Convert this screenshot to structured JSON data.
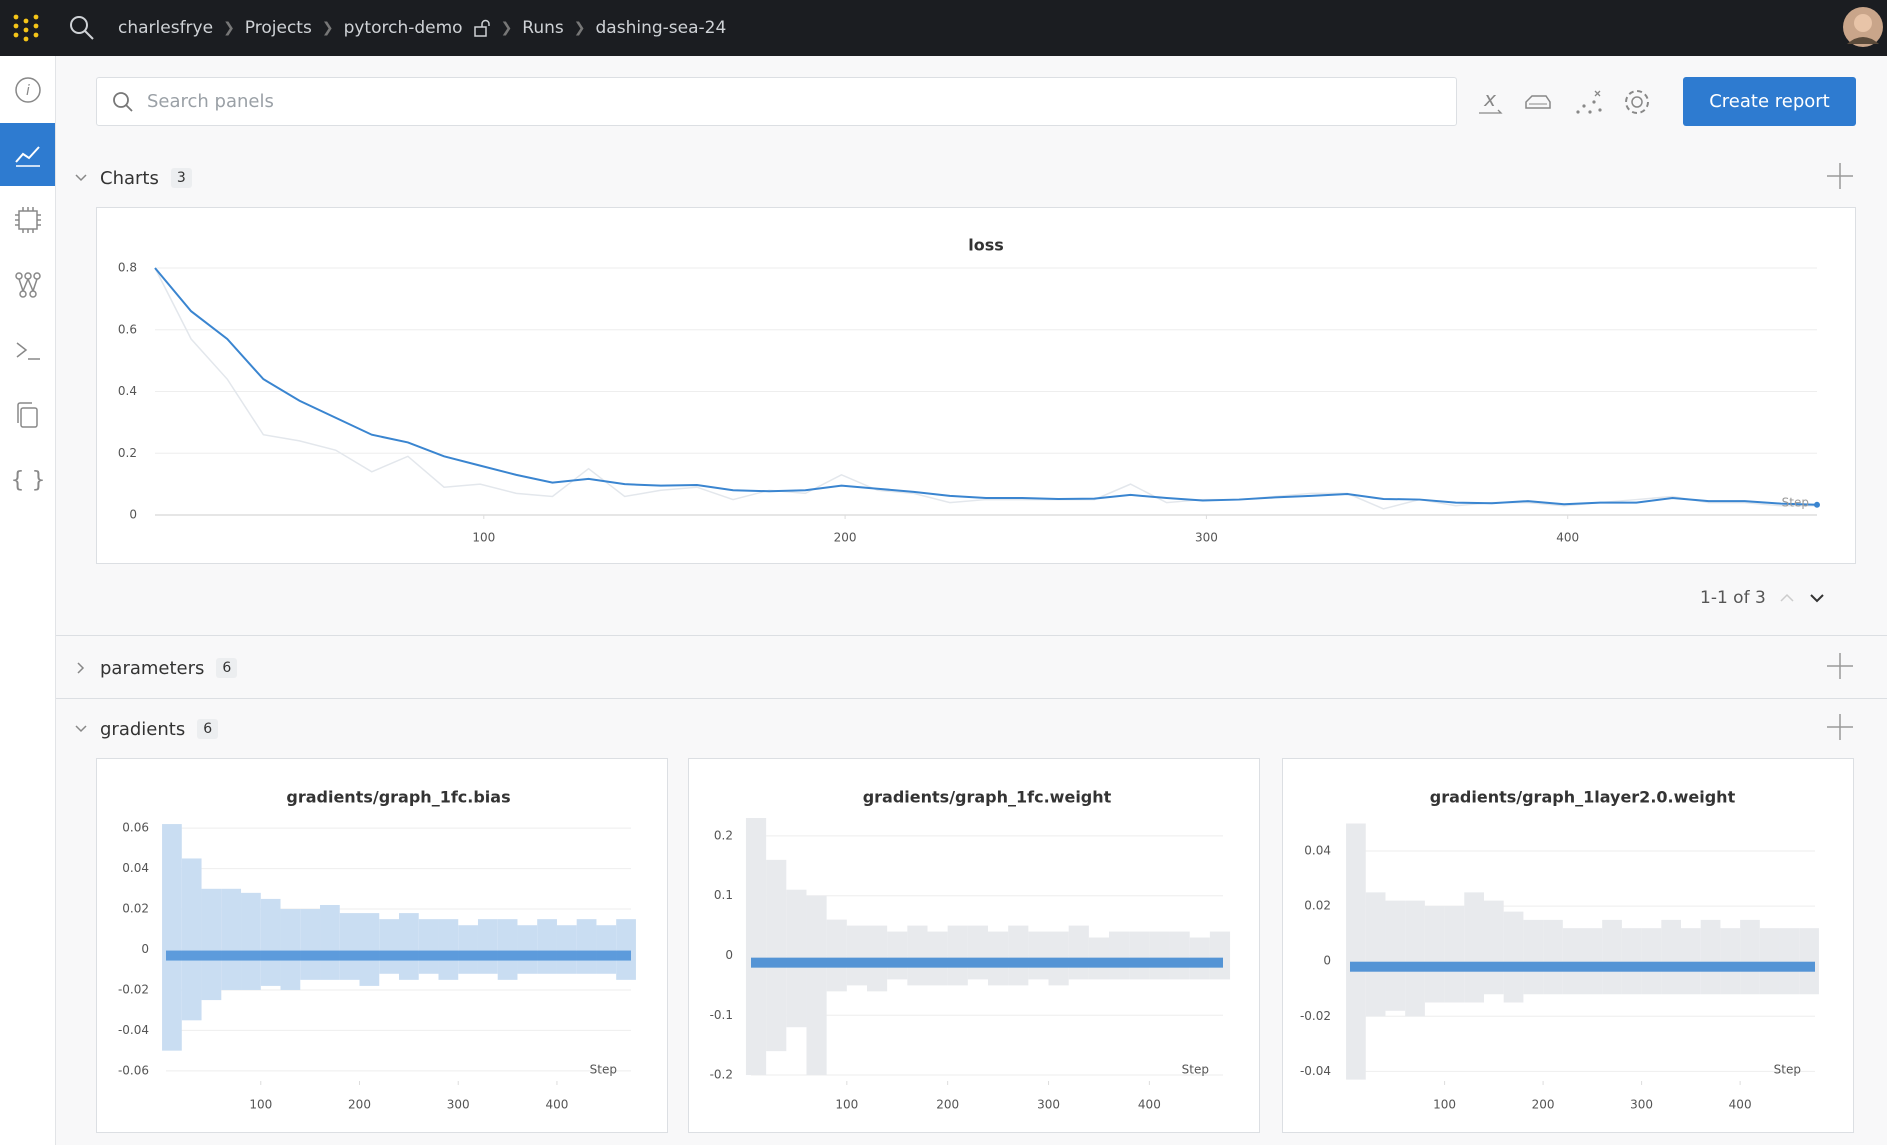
{
  "header": {
    "breadcrumbs": [
      "charlesfrye",
      "Projects",
      "pytorch-demo",
      "Runs",
      "dashing-sea-24"
    ]
  },
  "toolbar": {
    "search_placeholder": "Search panels",
    "button": "Create report"
  },
  "sections": [
    {
      "name": "Charts",
      "count": 3
    },
    {
      "name": "parameters",
      "count": 6
    },
    {
      "name": "gradients",
      "count": 6
    }
  ],
  "pagination": "1-1 of 3",
  "chart_data": [
    {
      "type": "line",
      "title": "loss",
      "xlabel": "Step",
      "x": [
        9,
        19,
        29,
        39,
        49,
        59,
        69,
        79,
        89,
        99,
        109,
        119,
        129,
        139,
        149,
        159,
        169,
        179,
        189,
        199,
        209,
        219,
        229,
        239,
        249,
        259,
        269,
        279,
        289,
        299,
        309,
        319,
        329,
        339,
        349,
        359,
        369,
        379,
        389,
        399,
        409,
        419,
        429,
        439,
        449,
        459,
        469
      ],
      "series": [
        {
          "color": "#e3e7ec",
          "values": [
            0.8,
            0.57,
            0.44,
            0.26,
            0.24,
            0.21,
            0.14,
            0.19,
            0.09,
            0.1,
            0.07,
            0.06,
            0.15,
            0.06,
            0.08,
            0.09,
            0.05,
            0.08,
            0.07,
            0.13,
            0.08,
            0.07,
            0.04,
            0.05,
            0.05,
            0.05,
            0.05,
            0.1,
            0.04,
            0.05,
            0.05,
            0.06,
            0.07,
            0.07,
            0.02,
            0.05,
            0.03,
            0.04,
            0.04,
            0.03,
            0.04,
            0.05,
            0.06,
            0.04,
            0.04,
            0.03,
            0.03
          ]
        },
        {
          "color": "#3a85d0",
          "values": [
            0.8,
            0.66,
            0.57,
            0.44,
            0.37,
            0.315,
            0.26,
            0.235,
            0.19,
            0.16,
            0.13,
            0.105,
            0.117,
            0.1,
            0.095,
            0.097,
            0.08,
            0.077,
            0.08,
            0.095,
            0.085,
            0.075,
            0.062,
            0.055,
            0.055,
            0.052,
            0.053,
            0.065,
            0.055,
            0.047,
            0.05,
            0.057,
            0.062,
            0.068,
            0.052,
            0.05,
            0.04,
            0.038,
            0.045,
            0.035,
            0.04,
            0.04,
            0.055,
            0.045,
            0.045,
            0.037,
            0.033
          ]
        }
      ],
      "xlim": [
        9,
        469
      ],
      "xticks": [
        100,
        200,
        300,
        400
      ],
      "ylim": [
        0,
        0.8
      ],
      "yticks": [
        0,
        0.2,
        0.4,
        0.6,
        0.8
      ],
      "grid": true
    },
    {
      "type": "heatmap",
      "title": "gradients/graph_1fc.bias",
      "xlabel": "Step",
      "color": "#c9ddf2",
      "center_color": "#4a8fd8",
      "x": [
        10,
        30,
        50,
        70,
        90,
        110,
        130,
        150,
        170,
        190,
        210,
        230,
        250,
        270,
        290,
        310,
        330,
        350,
        370,
        390,
        410,
        430,
        450,
        470
      ],
      "high": [
        0.062,
        0.045,
        0.03,
        0.03,
        0.028,
        0.025,
        0.02,
        0.02,
        0.022,
        0.018,
        0.018,
        0.015,
        0.018,
        0.015,
        0.015,
        0.012,
        0.015,
        0.015,
        0.012,
        0.015,
        0.012,
        0.015,
        0.012,
        0.015
      ],
      "low": [
        -0.05,
        -0.035,
        -0.025,
        -0.02,
        -0.02,
        -0.018,
        -0.02,
        -0.015,
        -0.015,
        -0.015,
        -0.018,
        -0.012,
        -0.015,
        -0.012,
        -0.015,
        -0.012,
        -0.012,
        -0.015,
        -0.012,
        -0.012,
        -0.012,
        -0.012,
        -0.012,
        -0.015
      ],
      "center": -0.003,
      "xlim": [
        4,
        475
      ],
      "xticks": [
        100,
        200,
        300,
        400
      ],
      "ylim": [
        -0.065,
        0.065
      ],
      "yticks": [
        -0.06,
        -0.04,
        -0.02,
        0,
        0.02,
        0.04,
        0.06
      ],
      "grid": true
    },
    {
      "type": "heatmap",
      "title": "gradients/graph_1fc.weight",
      "xlabel": "Step",
      "color": "#e8eaed",
      "center_color": "#3a85d0",
      "x": [
        10,
        30,
        50,
        70,
        90,
        110,
        130,
        150,
        170,
        190,
        210,
        230,
        250,
        270,
        290,
        310,
        330,
        350,
        370,
        390,
        410,
        430,
        450,
        470
      ],
      "high": [
        0.23,
        0.16,
        0.11,
        0.1,
        0.06,
        0.05,
        0.05,
        0.04,
        0.05,
        0.04,
        0.05,
        0.05,
        0.04,
        0.05,
        0.04,
        0.04,
        0.05,
        0.03,
        0.04,
        0.04,
        0.04,
        0.04,
        0.03,
        0.04
      ],
      "low": [
        -0.2,
        -0.16,
        -0.12,
        -0.2,
        -0.06,
        -0.05,
        -0.06,
        -0.04,
        -0.05,
        -0.05,
        -0.05,
        -0.04,
        -0.05,
        -0.05,
        -0.04,
        -0.05,
        -0.04,
        -0.04,
        -0.04,
        -0.04,
        -0.04,
        -0.04,
        -0.04,
        -0.04
      ],
      "center": -0.012,
      "xlim": [
        5,
        473
      ],
      "xticks": [
        100,
        200,
        300,
        400
      ],
      "ylim": [
        -0.21,
        0.23
      ],
      "yticks": [
        -0.2,
        -0.1,
        0,
        0.1,
        0.2
      ],
      "grid": true
    },
    {
      "type": "heatmap",
      "title": "gradients/graph_1layer2.0.weight",
      "xlabel": "Step",
      "color": "#e8eaed",
      "center_color": "#3a85d0",
      "x": [
        10,
        30,
        50,
        70,
        90,
        110,
        130,
        150,
        170,
        190,
        210,
        230,
        250,
        270,
        290,
        310,
        330,
        350,
        370,
        390,
        410,
        430,
        450,
        470
      ],
      "high": [
        0.05,
        0.025,
        0.022,
        0.022,
        0.02,
        0.02,
        0.025,
        0.022,
        0.018,
        0.015,
        0.015,
        0.012,
        0.012,
        0.015,
        0.012,
        0.012,
        0.015,
        0.012,
        0.015,
        0.012,
        0.015,
        0.012,
        0.012,
        0.012
      ],
      "low": [
        -0.043,
        -0.02,
        -0.018,
        -0.02,
        -0.015,
        -0.015,
        -0.015,
        -0.012,
        -0.015,
        -0.012,
        -0.012,
        -0.012,
        -0.012,
        -0.012,
        -0.012,
        -0.012,
        -0.012,
        -0.012,
        -0.012,
        -0.012,
        -0.012,
        -0.012,
        -0.012,
        -0.012
      ],
      "center": -0.002,
      "xlim": [
        4,
        476
      ],
      "xticks": [
        100,
        200,
        300,
        400
      ],
      "ylim": [
        -0.0435,
        0.052
      ],
      "yticks": [
        -0.04,
        -0.02,
        0,
        0.02,
        0.04
      ],
      "grid": true
    }
  ]
}
